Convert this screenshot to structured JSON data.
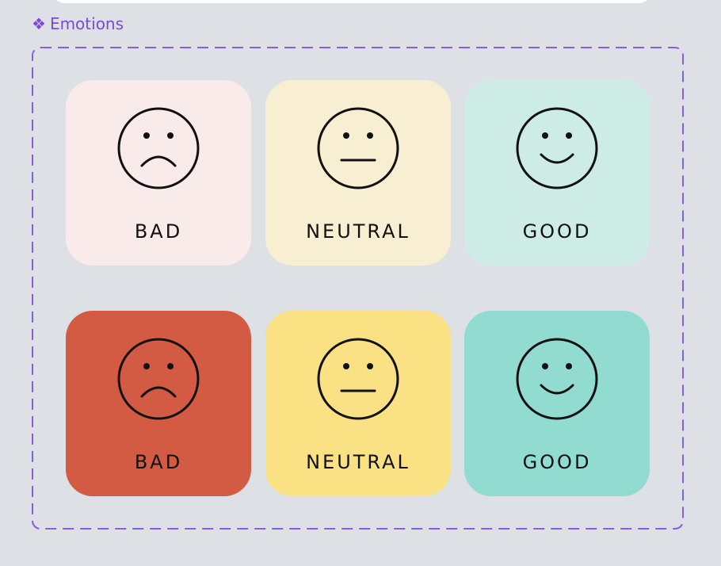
{
  "component": {
    "label": "Emotions",
    "icon": "component-icon",
    "color": "#7b4ad8"
  },
  "cards": [
    {
      "label": "BAD",
      "mood": "sad",
      "background": "#f9ebe9",
      "icon": "sad-face-icon"
    },
    {
      "label": "NEUTRAL",
      "mood": "neutral",
      "background": "#f8eed1",
      "icon": "neutral-face-icon"
    },
    {
      "label": "GOOD",
      "mood": "happy",
      "background": "#cdece6",
      "icon": "happy-face-icon"
    },
    {
      "label": "BAD",
      "mood": "sad",
      "background": "#d35a43",
      "icon": "sad-face-icon"
    },
    {
      "label": "NEUTRAL",
      "mood": "neutral",
      "background": "#f9e184",
      "icon": "neutral-face-icon"
    },
    {
      "label": "GOOD",
      "mood": "happy",
      "background": "#92dbd1",
      "icon": "happy-face-icon"
    }
  ]
}
